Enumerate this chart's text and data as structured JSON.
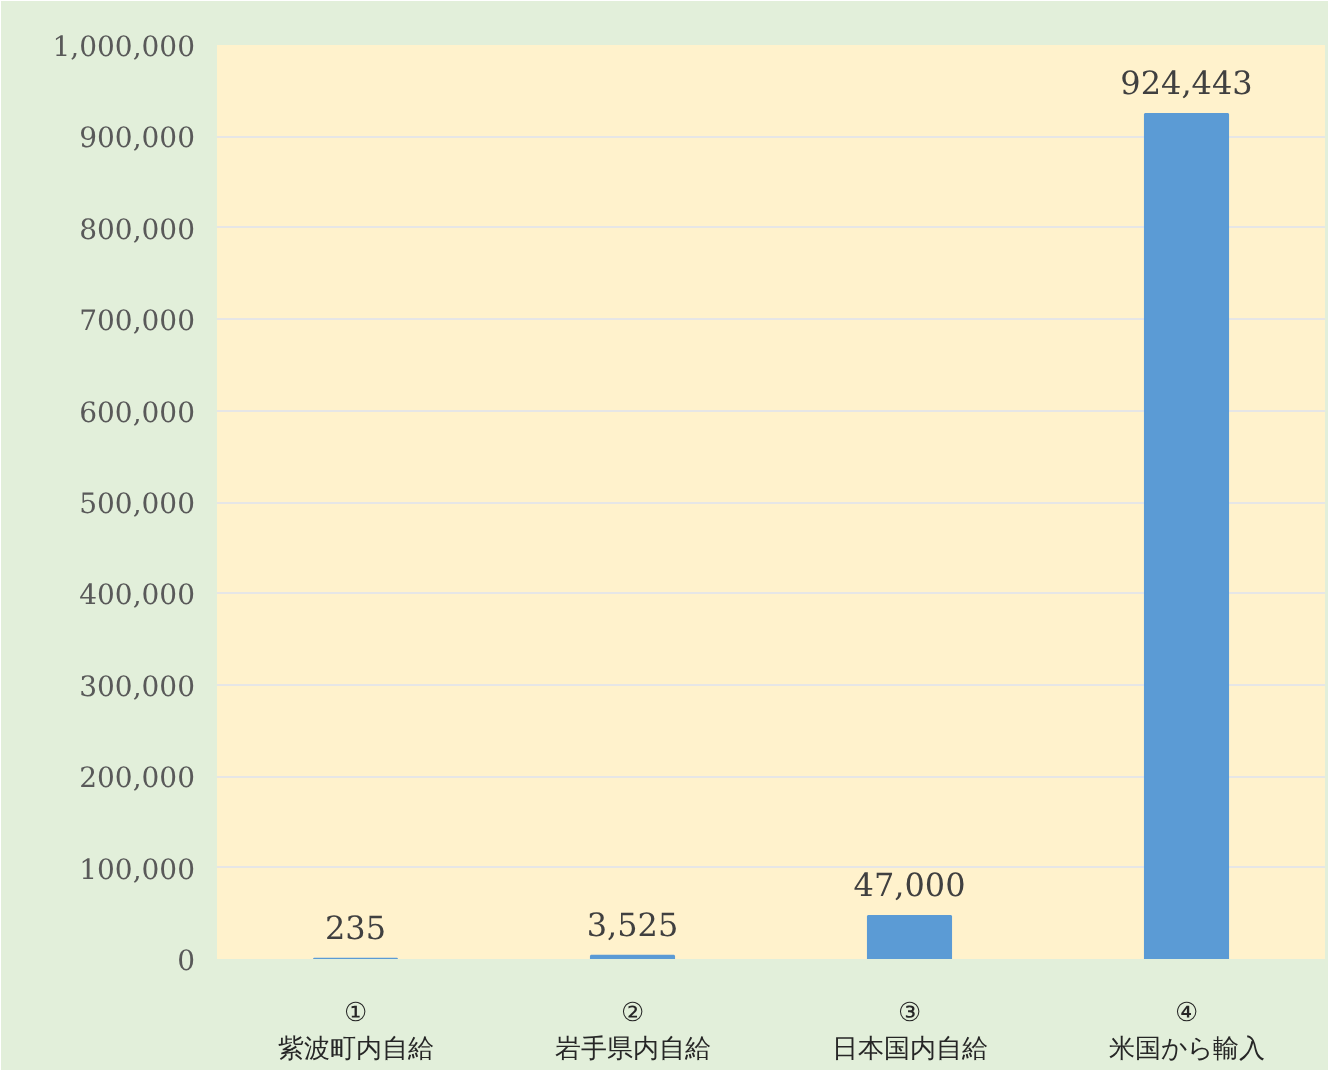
{
  "chart_data": {
    "type": "bar",
    "categories": [
      "①\n紫波町内自給",
      "②\n岩手県内自給",
      "③\n日本国内自給",
      "④\n米国から輸入"
    ],
    "values": [
      235,
      3525,
      47000,
      924443
    ],
    "color": "#5b9bd5",
    "ylim": [
      0,
      1000000
    ],
    "yticks": [
      {
        "value": 0,
        "label": "0"
      },
      {
        "value": 100000,
        "label": "100,000"
      },
      {
        "value": 200000,
        "label": "200,000"
      },
      {
        "value": 300000,
        "label": "300,000"
      },
      {
        "value": 400000,
        "label": "400,000"
      },
      {
        "value": 500000,
        "label": "500,000"
      },
      {
        "value": 600000,
        "label": "600,000"
      },
      {
        "value": 700000,
        "label": "700,000"
      },
      {
        "value": 800000,
        "label": "800,000"
      },
      {
        "value": 900000,
        "label": "900,000"
      },
      {
        "value": 1000000,
        "label": "1,000,000"
      }
    ],
    "grid": "y",
    "value_labels": [
      "235",
      "3,525",
      "47,000",
      "924,443"
    ]
  }
}
